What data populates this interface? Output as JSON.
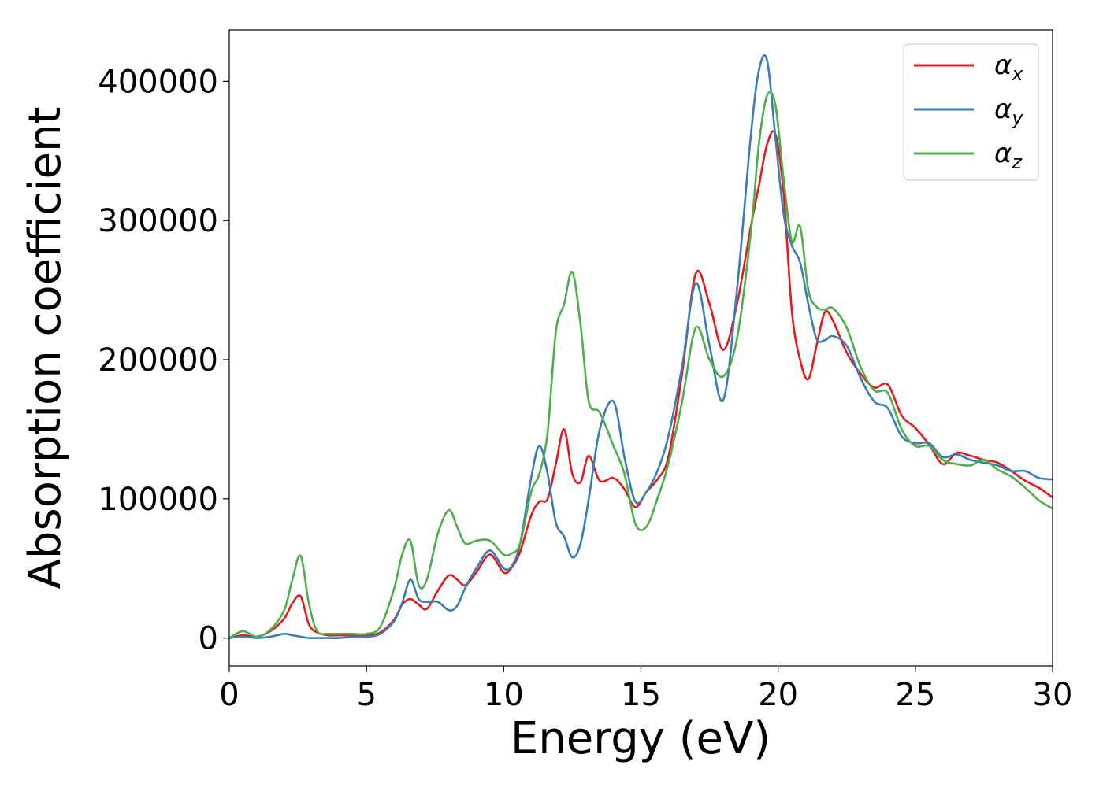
{
  "chart_data": {
    "type": "line",
    "xlabel": "Energy (eV)",
    "ylabel": "Absorption coefficient",
    "xlim": [
      0,
      30
    ],
    "ylim": [
      -20000,
      437000
    ],
    "x_ticks": [
      "0",
      "5",
      "10",
      "15",
      "20",
      "25",
      "30"
    ],
    "y_ticks": [
      "0",
      "100000",
      "200000",
      "300000",
      "400000"
    ],
    "grid": false,
    "legend_position": "top-right",
    "x": [
      0,
      0.5,
      1,
      1.5,
      2,
      2.3,
      2.6,
      2.9,
      3.2,
      3.6,
      4,
      4.5,
      5,
      5.5,
      6,
      6.3,
      6.6,
      6.9,
      7.2,
      7.6,
      8,
      8.3,
      8.6,
      9,
      9.5,
      10,
      10.3,
      10.6,
      11,
      11.3,
      11.6,
      11.9,
      12.2,
      12.5,
      12.8,
      13.1,
      13.5,
      14,
      14.4,
      14.8,
      15.2,
      15.6,
      16,
      16.5,
      17,
      17.5,
      18,
      18.5,
      19,
      19.3,
      19.6,
      19.9,
      20.2,
      20.5,
      20.8,
      21.1,
      21.4,
      21.7,
      22,
      22.5,
      23,
      23.5,
      24,
      24.5,
      25,
      25.5,
      26,
      26.5,
      27,
      27.5,
      28,
      28.5,
      29,
      29.5,
      30
    ],
    "series": [
      {
        "name": "α",
        "subscript": "x",
        "color": "#e41a1c",
        "values": [
          0,
          2000,
          1000,
          5000,
          14000,
          25000,
          30000,
          10000,
          4000,
          2000,
          2000,
          2000,
          2000,
          4000,
          13000,
          24000,
          28000,
          24000,
          21000,
          34000,
          45000,
          42000,
          38000,
          47000,
          60000,
          47000,
          51000,
          62000,
          88000,
          98000,
          100000,
          125000,
          150000,
          118000,
          112000,
          131000,
          113000,
          115000,
          107000,
          94000,
          105000,
          114000,
          130000,
          190000,
          262000,
          240000,
          207000,
          240000,
          295000,
          325000,
          355000,
          362000,
          320000,
          235000,
          200000,
          186000,
          210000,
          234000,
          228000,
          205000,
          190000,
          180000,
          182000,
          160000,
          151000,
          139000,
          125000,
          133000,
          131000,
          128000,
          126000,
          120000,
          113000,
          108000,
          101000
        ]
      },
      {
        "name": "α",
        "subscript": "y",
        "color": "#377eb8",
        "values": [
          0,
          1000,
          0,
          1000,
          3000,
          2000,
          1000,
          0,
          0,
          0,
          0,
          1000,
          1000,
          3000,
          12000,
          25000,
          42000,
          28000,
          26000,
          26000,
          20000,
          23000,
          36000,
          50000,
          63000,
          50000,
          52000,
          68000,
          115000,
          138000,
          118000,
          83000,
          73000,
          58000,
          68000,
          100000,
          150000,
          170000,
          130000,
          98000,
          105000,
          120000,
          145000,
          195000,
          255000,
          210000,
          171000,
          250000,
          360000,
          408000,
          415000,
          360000,
          305000,
          282000,
          270000,
          240000,
          215000,
          214000,
          217000,
          210000,
          187000,
          170000,
          165000,
          145000,
          140000,
          140000,
          130000,
          132000,
          128000,
          126000,
          124000,
          120000,
          120000,
          115000,
          114000
        ]
      },
      {
        "name": "α",
        "subscript": "z",
        "color": "#4daf4a",
        "values": [
          0,
          5000,
          1000,
          6000,
          20000,
          42000,
          59000,
          25000,
          5000,
          3000,
          3000,
          3000,
          3000,
          8000,
          35000,
          60000,
          70000,
          38000,
          42000,
          75000,
          92000,
          80000,
          68000,
          70000,
          70000,
          60000,
          61000,
          68000,
          105000,
          118000,
          148000,
          220000,
          240000,
          263000,
          225000,
          170000,
          162000,
          138000,
          118000,
          82000,
          80000,
          100000,
          125000,
          170000,
          223000,
          200000,
          188000,
          215000,
          290000,
          355000,
          390000,
          383000,
          330000,
          285000,
          296000,
          250000,
          238000,
          236000,
          237000,
          223000,
          195000,
          178000,
          176000,
          150000,
          138000,
          138000,
          128000,
          125000,
          124000,
          128000,
          121000,
          116000,
          108000,
          99000,
          93000
        ]
      }
    ]
  }
}
